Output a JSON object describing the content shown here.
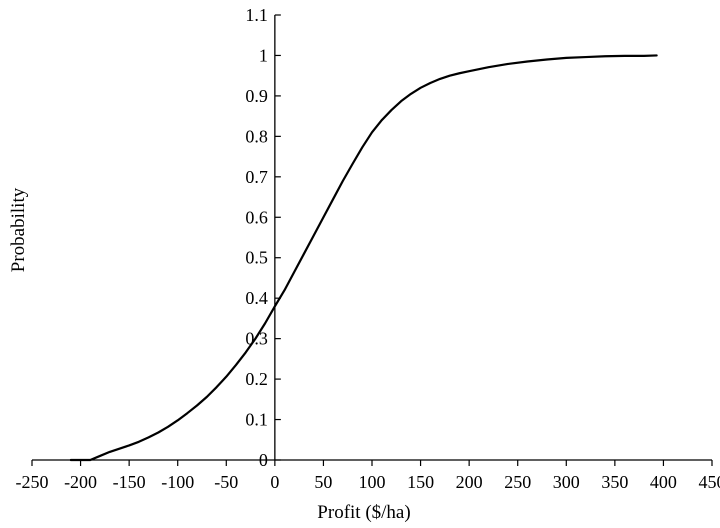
{
  "chart_data": {
    "type": "line",
    "title": "",
    "xlabel": "Profit ($/ha)",
    "ylabel": "Probability",
    "xlim": [
      -250,
      450
    ],
    "ylim": [
      0,
      1.1
    ],
    "x_ticks": [
      "-250",
      "-200",
      "-150",
      "-100",
      "-50",
      "0",
      "50",
      "100",
      "150",
      "200",
      "250",
      "300",
      "350",
      "400",
      "450"
    ],
    "y_ticks": [
      "0",
      "0.1",
      "0.2",
      "0.3",
      "0.4",
      "0.5",
      "0.6",
      "0.7",
      "0.8",
      "0.9",
      "1",
      "1.1"
    ],
    "grid": false,
    "legend": "none",
    "colors": {
      "line": "#000000",
      "axis": "#000000"
    },
    "series": [
      {
        "x": [
          -210,
          -190,
          -180,
          -170,
          -160,
          -150,
          -140,
          -130,
          -120,
          -110,
          -100,
          -90,
          -80,
          -70,
          -60,
          -50,
          -40,
          -30,
          -20,
          -10,
          0,
          10,
          20,
          30,
          40,
          50,
          60,
          70,
          80,
          90,
          100,
          110,
          120,
          130,
          140,
          150,
          160,
          170,
          180,
          190,
          200,
          220,
          240,
          260,
          280,
          300,
          320,
          340,
          360,
          380,
          393
        ],
        "y": [
          0,
          0,
          0.01,
          0.02,
          0.028,
          0.036,
          0.045,
          0.056,
          0.068,
          0.082,
          0.098,
          0.116,
          0.135,
          0.156,
          0.18,
          0.206,
          0.235,
          0.266,
          0.3,
          0.338,
          0.38,
          0.42,
          0.465,
          0.51,
          0.555,
          0.6,
          0.645,
          0.69,
          0.732,
          0.773,
          0.81,
          0.84,
          0.865,
          0.887,
          0.905,
          0.92,
          0.932,
          0.942,
          0.95,
          0.956,
          0.961,
          0.971,
          0.979,
          0.985,
          0.99,
          0.994,
          0.996,
          0.998,
          0.999,
          0.999,
          1.0
        ]
      }
    ]
  }
}
